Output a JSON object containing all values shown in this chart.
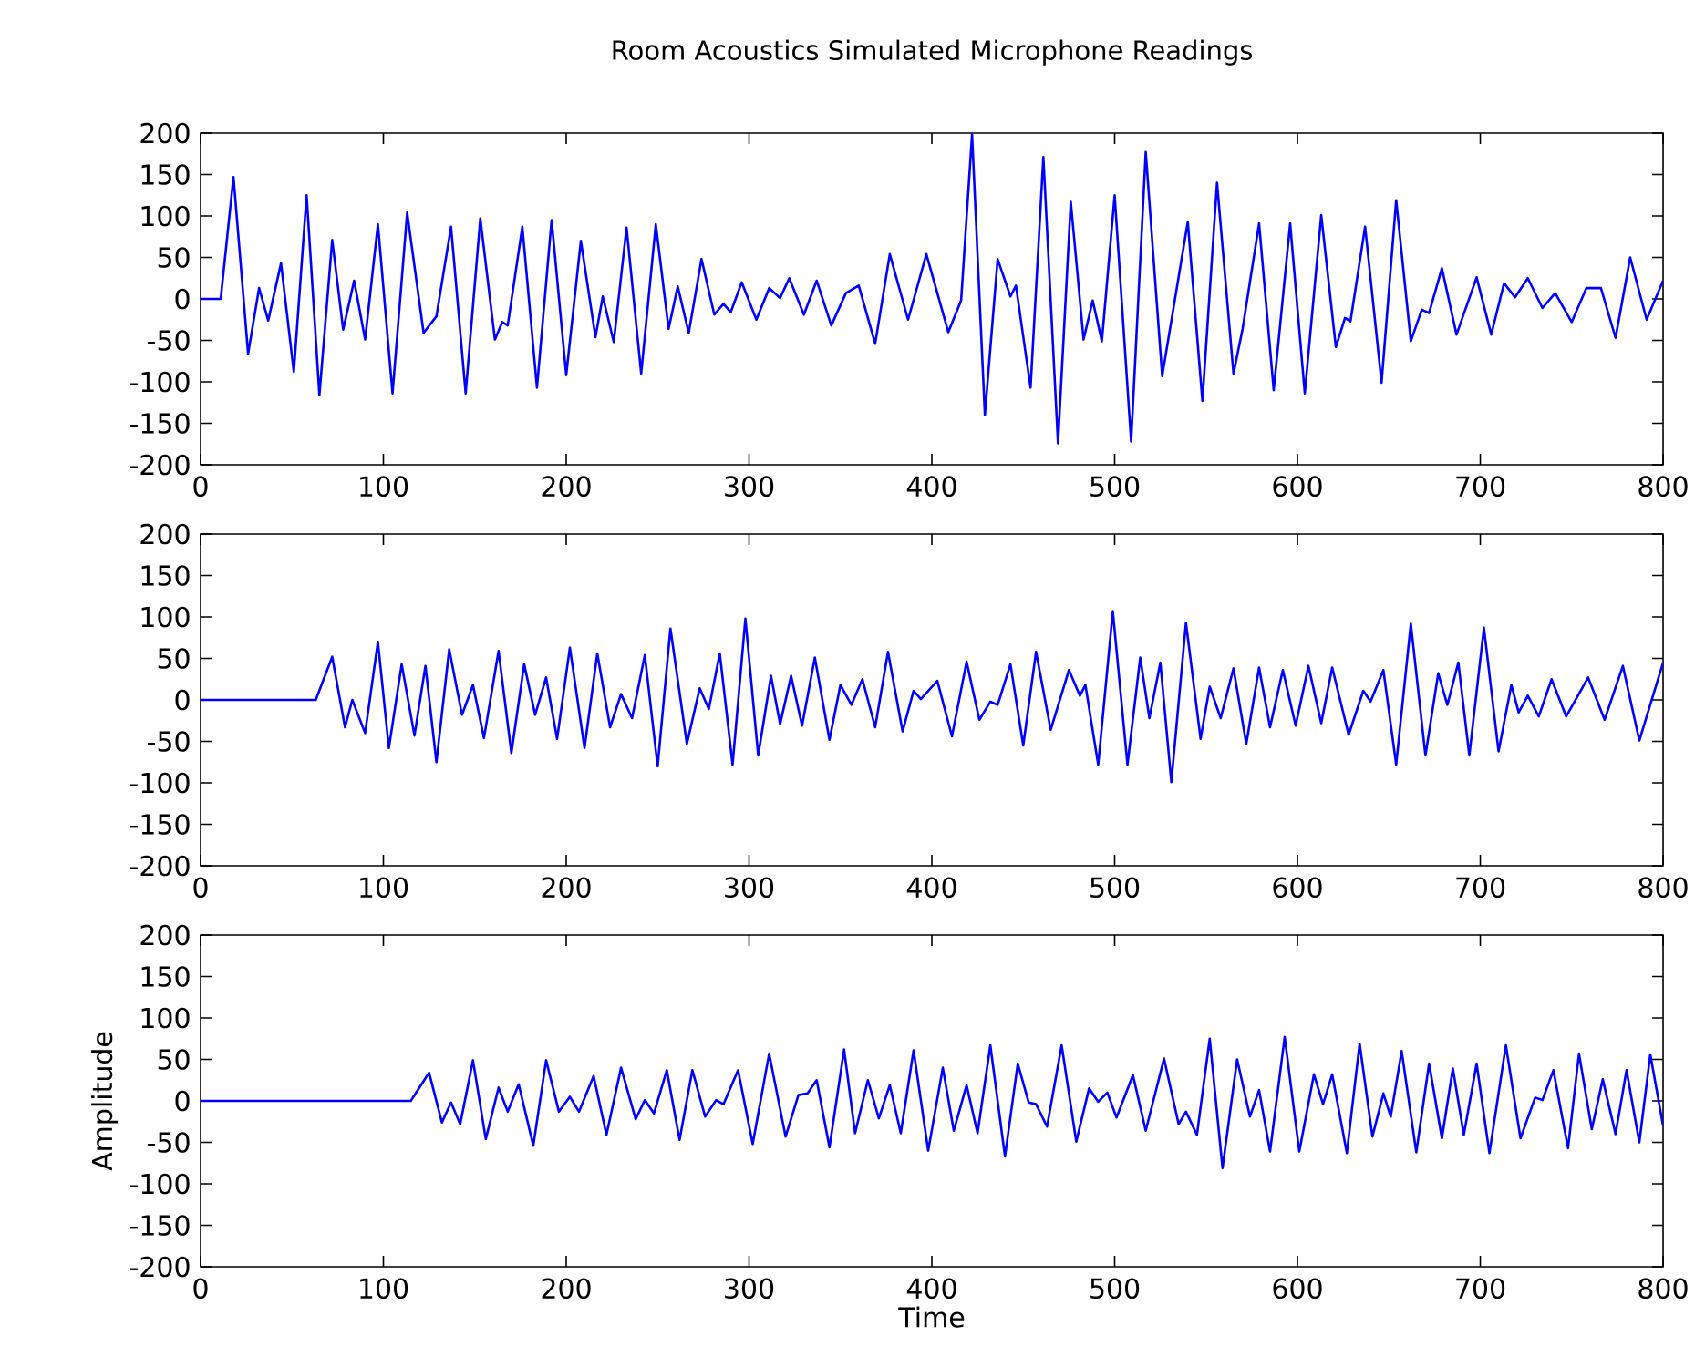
{
  "chart_data": [
    {
      "type": "line",
      "title": "Room Acoustics Simulated Microphone Readings",
      "color": "#0000ff",
      "xlim": [
        0,
        800
      ],
      "ylim": [
        -200,
        200
      ],
      "xticks": [
        0,
        100,
        200,
        300,
        400,
        500,
        600,
        700,
        800
      ],
      "yticks": [
        -200,
        -150,
        -100,
        -50,
        0,
        50,
        100,
        150,
        200
      ],
      "x": [
        0,
        11,
        18,
        26,
        32,
        37,
        44,
        51,
        58,
        65,
        72,
        78,
        84,
        90,
        97,
        105,
        113,
        122,
        129,
        137,
        145,
        153,
        161,
        165,
        168,
        176,
        184,
        192,
        200,
        208,
        216,
        220,
        226,
        233,
        241,
        249,
        256,
        261,
        267,
        274,
        281,
        286,
        290,
        296,
        304,
        311,
        317,
        322,
        330,
        337,
        345,
        353,
        360,
        369,
        377,
        387,
        397,
        409,
        416,
        422,
        429,
        436,
        443,
        446,
        454,
        461,
        469,
        476,
        483,
        488,
        493,
        500,
        509,
        517,
        526,
        533,
        540,
        548,
        556,
        565,
        570,
        579,
        587,
        596,
        604,
        613,
        621,
        626,
        629,
        637,
        646,
        654,
        662,
        668,
        672,
        679,
        687,
        698,
        706,
        713,
        719,
        726,
        734,
        741,
        750,
        758,
        766,
        774,
        782,
        791,
        800
      ],
      "values": [
        0,
        0,
        147,
        -66,
        13,
        -26,
        43,
        -88,
        125,
        -116,
        71,
        -37,
        22,
        -49,
        90,
        -114,
        104,
        -41,
        -21,
        87,
        -114,
        97,
        -49,
        -28,
        -32,
        87,
        -107,
        95,
        -92,
        70,
        -46,
        3,
        -52,
        86,
        -90,
        90,
        -36,
        15,
        -41,
        48,
        -19,
        -6,
        -16,
        20,
        -25,
        13,
        1,
        25,
        -19,
        22,
        -32,
        7,
        16,
        -54,
        54,
        -25,
        54,
        -40,
        -2,
        198,
        -140,
        48,
        3,
        16,
        -107,
        171,
        -174,
        117,
        -49,
        -2,
        -51,
        125,
        -172,
        177,
        -93,
        0,
        93,
        -123,
        140,
        -90,
        -36,
        91,
        -110,
        91,
        -114,
        101,
        -58,
        -23,
        -27,
        87,
        -101,
        119,
        -51,
        -13,
        -17,
        37,
        -43,
        26,
        -43,
        19,
        2,
        25,
        -11,
        7,
        -28,
        13,
        13,
        -47,
        50,
        -25,
        22
      ]
    },
    {
      "type": "line",
      "color": "#0000ff",
      "xlim": [
        0,
        800
      ],
      "ylim": [
        -200,
        200
      ],
      "xticks": [
        0,
        100,
        200,
        300,
        400,
        500,
        600,
        700,
        800
      ],
      "yticks": [
        -200,
        -150,
        -100,
        -50,
        0,
        50,
        100,
        150,
        200
      ],
      "x": [
        0,
        63,
        72,
        79,
        83,
        90,
        97,
        103,
        110,
        117,
        123,
        129,
        136,
        143,
        149,
        155,
        163,
        170,
        177,
        183,
        189,
        195,
        202,
        210,
        217,
        224,
        230,
        236,
        243,
        250,
        257,
        266,
        273,
        278,
        284,
        291,
        298,
        305,
        312,
        317,
        323,
        329,
        336,
        344,
        350,
        356,
        362,
        369,
        376,
        384,
        390,
        394,
        403,
        411,
        419,
        426,
        432,
        436,
        443,
        450,
        457,
        465,
        475,
        481,
        484,
        491,
        499,
        507,
        514,
        519,
        525,
        531,
        539,
        547,
        552,
        558,
        565,
        572,
        579,
        585,
        592,
        599,
        606,
        613,
        619,
        628,
        636,
        640,
        647,
        654,
        662,
        670,
        677,
        682,
        688,
        694,
        702,
        710,
        717,
        721,
        726,
        732,
        739,
        747,
        759,
        768,
        778,
        787,
        800
      ],
      "values": [
        0,
        0,
        52,
        -33,
        0,
        -40,
        70,
        -58,
        43,
        -43,
        41,
        -75,
        61,
        -18,
        18,
        -46,
        59,
        -64,
        43,
        -18,
        27,
        -47,
        63,
        -58,
        56,
        -33,
        7,
        -22,
        54,
        -80,
        86,
        -53,
        14,
        -11,
        56,
        -78,
        98,
        -67,
        29,
        -29,
        29,
        -31,
        51,
        -48,
        18,
        -6,
        25,
        -33,
        58,
        -38,
        11,
        1,
        23,
        -44,
        46,
        -24,
        -2,
        -6,
        43,
        -55,
        58,
        -36,
        36,
        5,
        18,
        -78,
        107,
        -78,
        51,
        -22,
        45,
        -99,
        93,
        -47,
        16,
        -22,
        38,
        -53,
        39,
        -33,
        36,
        -31,
        41,
        -28,
        39,
        -42,
        11,
        -2,
        36,
        -78,
        92,
        -67,
        32,
        -6,
        45,
        -67,
        87,
        -62,
        18,
        -15,
        5,
        -20,
        25,
        -20,
        27,
        -24,
        41,
        -49,
        45
      ]
    },
    {
      "type": "line",
      "xlabel": "Time",
      "ylabel": "Amplitude",
      "color": "#0000ff",
      "xlim": [
        0,
        800
      ],
      "ylim": [
        -200,
        200
      ],
      "xticks": [
        0,
        100,
        200,
        300,
        400,
        500,
        600,
        700,
        800
      ],
      "yticks": [
        -200,
        -150,
        -100,
        -50,
        0,
        50,
        100,
        150,
        200
      ],
      "x": [
        0,
        115,
        125,
        132,
        137,
        142,
        149,
        156,
        163,
        168,
        174,
        182,
        189,
        196,
        202,
        207,
        215,
        222,
        230,
        238,
        243,
        248,
        255,
        262,
        269,
        276,
        282,
        286,
        294,
        302,
        311,
        320,
        327,
        332,
        337,
        344,
        352,
        358,
        365,
        371,
        377,
        383,
        390,
        398,
        406,
        412,
        419,
        425,
        432,
        440,
        447,
        453,
        457,
        463,
        471,
        479,
        486,
        491,
        496,
        501,
        510,
        517,
        527,
        535,
        539,
        545,
        552,
        559,
        567,
        574,
        579,
        585,
        593,
        601,
        609,
        614,
        619,
        627,
        634,
        641,
        647,
        651,
        657,
        665,
        672,
        679,
        685,
        691,
        698,
        705,
        714,
        722,
        730,
        734,
        740,
        748,
        754,
        761,
        767,
        774,
        780,
        787,
        793,
        800
      ],
      "values": [
        0,
        0,
        34,
        -26,
        -2,
        -28,
        49,
        -46,
        16,
        -13,
        20,
        -54,
        49,
        -13,
        5,
        -13,
        30,
        -41,
        40,
        -22,
        1,
        -15,
        37,
        -47,
        37,
        -19,
        1,
        -4,
        37,
        -52,
        57,
        -43,
        7,
        9,
        25,
        -56,
        62,
        -39,
        25,
        -21,
        19,
        -39,
        61,
        -60,
        40,
        -36,
        19,
        -39,
        67,
        -67,
        45,
        -2,
        -4,
        -31,
        67,
        -49,
        15,
        -1,
        10,
        -20,
        31,
        -36,
        51,
        -28,
        -13,
        -41,
        75,
        -81,
        50,
        -19,
        13,
        -61,
        77,
        -61,
        32,
        -4,
        32,
        -63,
        69,
        -43,
        9,
        -19,
        60,
        -62,
        45,
        -45,
        39,
        -41,
        45,
        -63,
        67,
        -45,
        4,
        1,
        37,
        -57,
        57,
        -34,
        26,
        -40,
        37,
        -50,
        56,
        -30
      ]
    }
  ]
}
